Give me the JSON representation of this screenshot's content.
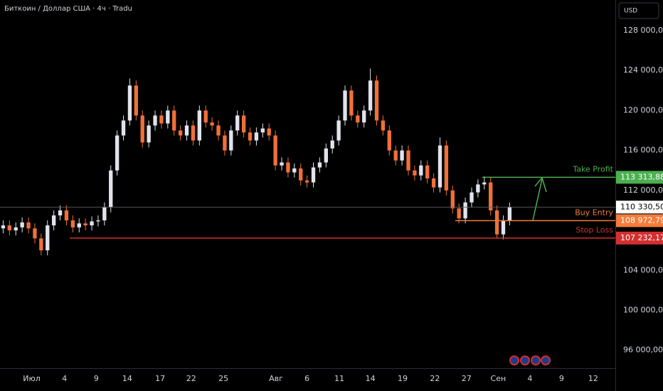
{
  "chart_data": {
    "type": "candlestick",
    "title": "Биткоин / Доллар США · 4ч · Tradu",
    "currency": "USD",
    "open": [
      108200,
      108500,
      108000,
      108300,
      108800,
      108200,
      107200,
      106000,
      108500,
      109500,
      110000,
      109000,
      108300,
      108700,
      108500,
      108900,
      109000,
      110300,
      114000,
      117500,
      119000,
      122500,
      119500,
      116800,
      118500,
      119500,
      118700,
      120000,
      118000,
      117500,
      118500,
      117000,
      120000,
      118800,
      118500,
      117500,
      116000,
      118000,
      119500,
      117800,
      117000,
      117800,
      118200,
      117500,
      114500,
      114800,
      113800,
      114200,
      113000,
      112800,
      114300,
      114800,
      116200,
      117000,
      119000,
      122000,
      119500,
      118800,
      120000,
      123000,
      119000,
      118000,
      116000,
      115000,
      116000,
      114000,
      113500,
      114500,
      113200,
      112300,
      116500,
      112000,
      110200,
      109200,
      110800,
      111800,
      112600,
      112800,
      110000,
      107600,
      109000
    ],
    "high": [
      109000,
      109000,
      108800,
      109300,
      109300,
      108700,
      107700,
      109000,
      110000,
      110500,
      110500,
      109500,
      109200,
      109200,
      109400,
      109500,
      110800,
      114500,
      118000,
      119500,
      123200,
      123000,
      120000,
      119000,
      120000,
      120000,
      120500,
      120500,
      118500,
      119000,
      119000,
      120500,
      120500,
      119300,
      119000,
      118000,
      118500,
      120000,
      120000,
      118300,
      118300,
      118700,
      118700,
      118000,
      115300,
      115300,
      114700,
      114700,
      113500,
      114800,
      115300,
      116700,
      117500,
      119500,
      122500,
      122500,
      120000,
      120500,
      124200,
      123500,
      119500,
      118500,
      116500,
      116500,
      116500,
      114500,
      115000,
      115000,
      113700,
      117300,
      117000,
      112500,
      110700,
      111300,
      112300,
      113100,
      113400,
      113300,
      110500,
      109500,
      110800
    ],
    "low": [
      107700,
      107500,
      107500,
      107800,
      107700,
      106700,
      105500,
      105500,
      108000,
      109000,
      108500,
      107800,
      107800,
      108000,
      108000,
      108400,
      108500,
      109800,
      113500,
      117000,
      118500,
      119000,
      116300,
      116300,
      118000,
      118200,
      118200,
      117500,
      117000,
      117000,
      116500,
      116500,
      118300,
      118000,
      117000,
      115500,
      115500,
      117500,
      117300,
      116500,
      116500,
      117300,
      117000,
      114000,
      114000,
      113300,
      113300,
      112500,
      112300,
      112300,
      113800,
      114300,
      115700,
      116500,
      118500,
      119000,
      118300,
      118300,
      119500,
      118500,
      117500,
      115500,
      114500,
      114500,
      113500,
      113000,
      113000,
      112700,
      111800,
      111800,
      111500,
      109700,
      108700,
      108700,
      110300,
      111300,
      112100,
      109500,
      107200,
      107100,
      108500
    ],
    "close": [
      108500,
      108000,
      108300,
      108800,
      108200,
      107200,
      106000,
      108500,
      109500,
      110000,
      109000,
      108300,
      108700,
      108500,
      108900,
      109000,
      110300,
      114000,
      117500,
      119000,
      122500,
      119500,
      116800,
      118500,
      119500,
      118700,
      120000,
      118000,
      117500,
      118500,
      117000,
      120000,
      118800,
      118500,
      117500,
      116000,
      118000,
      119500,
      117800,
      117000,
      117800,
      118200,
      117500,
      114500,
      114800,
      113800,
      114200,
      113000,
      112800,
      114300,
      114800,
      116200,
      117000,
      119000,
      122000,
      119500,
      118800,
      120000,
      123000,
      119000,
      118000,
      116000,
      115000,
      116000,
      114000,
      113500,
      114500,
      113200,
      112300,
      116500,
      112000,
      110200,
      109200,
      110800,
      111800,
      112600,
      112800,
      110000,
      107600,
      109000,
      110330.5
    ],
    "up_color": "#e0e3eb",
    "down_color": "#f0703a",
    "ylim": [
      94200,
      131060
    ],
    "yticks": [
      {
        "value": 128000,
        "label": "128 000,00"
      },
      {
        "value": 124000,
        "label": "124 000,00"
      },
      {
        "value": 120000,
        "label": "120 000,00"
      },
      {
        "value": 116000,
        "label": "116 000,00"
      },
      {
        "value": 112000,
        "label": "112 000,00"
      },
      {
        "value": 104000,
        "label": "104 000,00"
      },
      {
        "value": 100000,
        "label": "100 000,00"
      },
      {
        "value": 96000,
        "label": "96 000,00"
      }
    ],
    "xlim": [
      0,
      97.2
    ],
    "xticks": [
      {
        "value": 5,
        "label": "Июл"
      },
      {
        "value": 10.2,
        "label": "4"
      },
      {
        "value": 15.2,
        "label": "9"
      },
      {
        "value": 20.1,
        "label": "14"
      },
      {
        "value": 25.3,
        "label": "17"
      },
      {
        "value": 30.2,
        "label": "22"
      },
      {
        "value": 35.3,
        "label": "25"
      },
      {
        "value": 43.6,
        "label": "Авг"
      },
      {
        "value": 48.5,
        "label": "6"
      },
      {
        "value": 53.6,
        "label": "11"
      },
      {
        "value": 58.5,
        "label": "14"
      },
      {
        "value": 63.6,
        "label": "19"
      },
      {
        "value": 68.7,
        "label": "22"
      },
      {
        "value": 73.7,
        "label": "27"
      },
      {
        "value": 78.7,
        "label": "Сен"
      },
      {
        "value": 83.7,
        "label": "4"
      },
      {
        "value": 88.7,
        "label": "9"
      },
      {
        "value": 93.7,
        "label": "12"
      }
    ],
    "last_price": {
      "value": 110330.5,
      "label": "110 330,50"
    },
    "levels": [
      {
        "name": "Take Profit",
        "value": 113313.88,
        "label": "113 313,88",
        "color": "#4caf50"
      },
      {
        "name": "Buy Entry",
        "value": 108972.79,
        "label": "108 972,79",
        "color": "#f57c3a"
      },
      {
        "name": "Stop Loss",
        "value": 107232.17,
        "label": "107 232,17",
        "color": "#d32f2f"
      }
    ]
  }
}
